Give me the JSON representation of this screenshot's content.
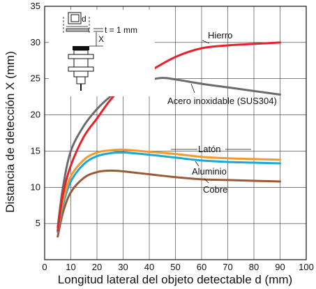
{
  "chart_data": {
    "type": "line",
    "xlabel": "Longitud lateral del objeto detectable d (mm)",
    "ylabel": "Distancia de detección X (mm)",
    "xlim": [
      0,
      100
    ],
    "ylim": [
      0,
      35
    ],
    "xticks": [
      "0",
      "10",
      "20",
      "30",
      "40",
      "50",
      "60",
      "70",
      "80",
      "90",
      "100"
    ],
    "yticks": [
      "5",
      "10",
      "15",
      "20",
      "25",
      "30",
      "35"
    ],
    "grid": true,
    "series": [
      {
        "name": "Hierro",
        "color": "#e8202a",
        "x": [
          5,
          7,
          10,
          15,
          20,
          25,
          30,
          40,
          50,
          60,
          70,
          80,
          90
        ],
        "y": [
          4.0,
          9.0,
          13.0,
          17.0,
          19.5,
          22.0,
          23.8,
          26.0,
          28.0,
          29.2,
          29.6,
          29.8,
          30.0
        ]
      },
      {
        "name": "Acero inoxidable (SUS304)",
        "color": "#6b6b6b",
        "x": [
          5,
          7,
          10,
          15,
          20,
          25,
          30,
          40,
          45,
          50,
          60,
          70,
          80,
          90
        ],
        "y": [
          4.5,
          10.0,
          15.0,
          18.5,
          20.8,
          22.5,
          23.8,
          24.8,
          25.1,
          24.9,
          24.3,
          23.8,
          23.3,
          22.8
        ]
      },
      {
        "name": "Latón",
        "color": "#f29a2a",
        "x": [
          5,
          7,
          10,
          15,
          20,
          25,
          30,
          40,
          50,
          60,
          70,
          80,
          90
        ],
        "y": [
          4.0,
          8.0,
          11.5,
          13.8,
          14.8,
          15.1,
          15.2,
          14.9,
          14.6,
          14.2,
          14.0,
          13.9,
          13.8
        ]
      },
      {
        "name": "Aluminio",
        "color": "#1aa8d8",
        "x": [
          5,
          7,
          10,
          15,
          20,
          25,
          30,
          40,
          50,
          60,
          70,
          80,
          90
        ],
        "y": [
          3.8,
          7.5,
          10.8,
          13.2,
          14.3,
          14.7,
          14.8,
          14.5,
          14.1,
          13.7,
          13.5,
          13.4,
          13.3
        ]
      },
      {
        "name": "Cobre",
        "color": "#9a5a38",
        "x": [
          5,
          7,
          10,
          15,
          20,
          25,
          30,
          40,
          50,
          60,
          70,
          80,
          90
        ],
        "y": [
          3.2,
          6.5,
          9.3,
          11.3,
          12.1,
          12.3,
          12.2,
          11.8,
          11.4,
          11.1,
          11.0,
          10.9,
          10.8
        ]
      }
    ]
  },
  "inset": {
    "d_label": "d",
    "t_label": "t = 1 mm",
    "x_label": "X"
  }
}
